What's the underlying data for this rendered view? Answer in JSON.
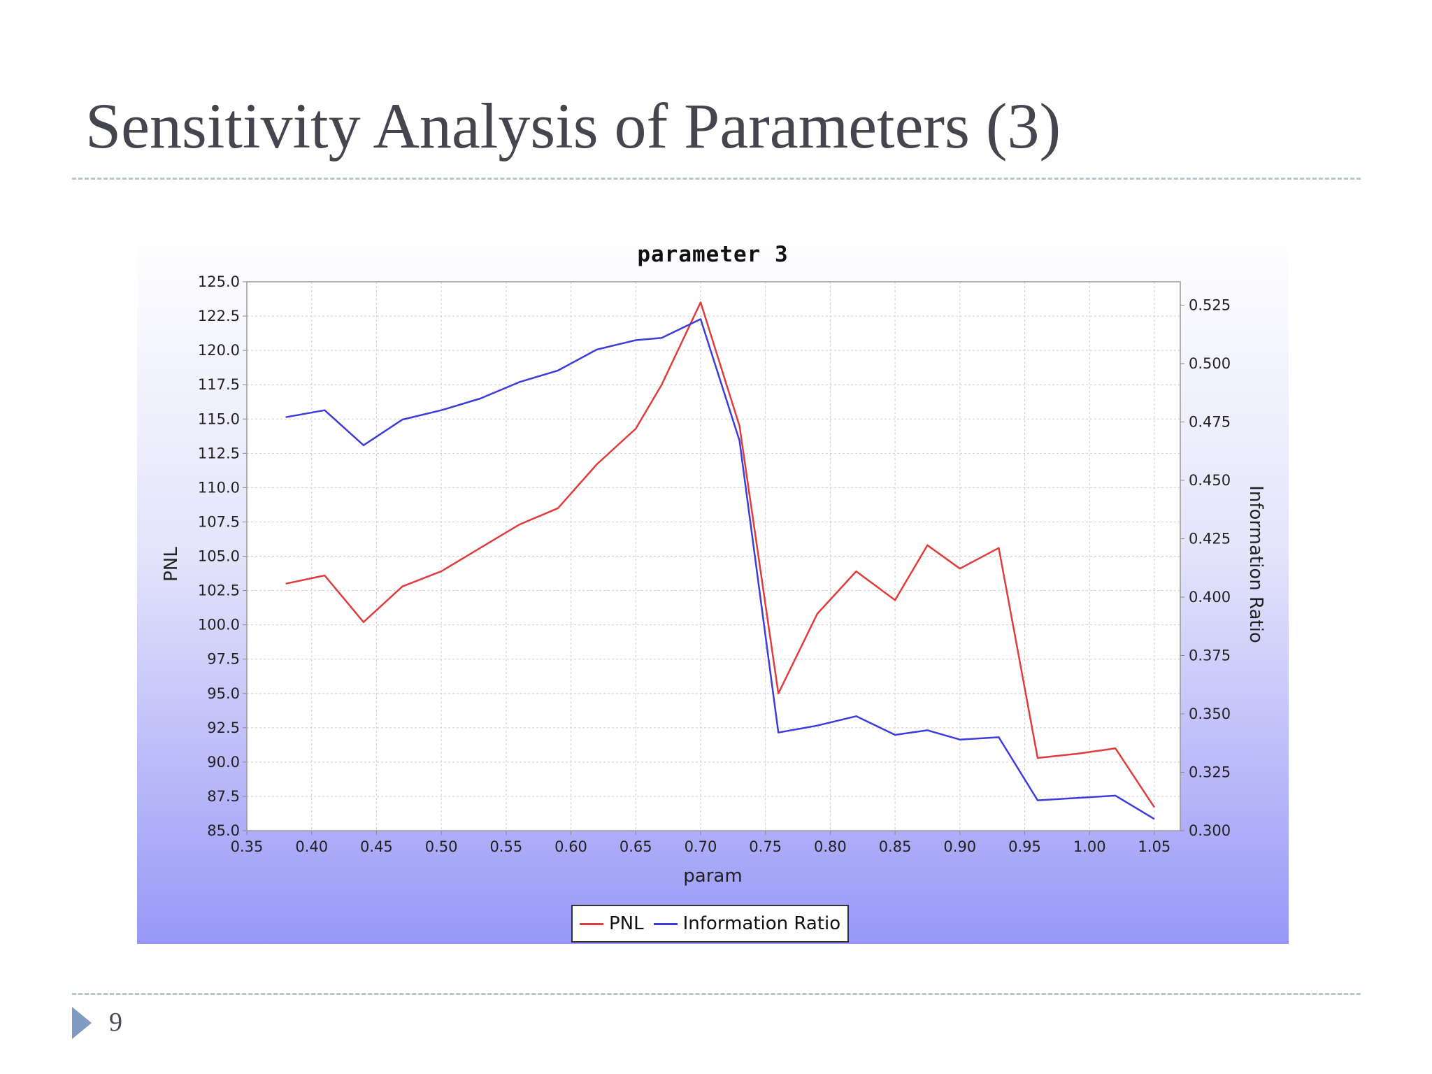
{
  "slide": {
    "title": "Sensitivity Analysis of Parameters (3)",
    "page_number": "9"
  },
  "colors": {
    "pnl": "#e03c3c",
    "information_ratio": "#3c3cdc",
    "grid": "#cfcfcf",
    "plot_background": "#ffffff"
  },
  "chart_data": {
    "type": "line",
    "title": "parameter 3",
    "xlabel": "param",
    "ylabel": "PNL",
    "ylabel_right": "Information Ratio",
    "xlim": [
      0.35,
      1.07
    ],
    "ylim": [
      85.0,
      125.0
    ],
    "ylim_right": [
      0.3,
      0.535
    ],
    "x_ticks": [
      "0.35",
      "0.40",
      "0.45",
      "0.50",
      "0.55",
      "0.60",
      "0.65",
      "0.70",
      "0.75",
      "0.80",
      "0.85",
      "0.90",
      "0.95",
      "1.00",
      "1.05"
    ],
    "y_ticks": [
      "85.0",
      "87.5",
      "90.0",
      "92.5",
      "95.0",
      "97.5",
      "100.0",
      "102.5",
      "105.0",
      "107.5",
      "110.0",
      "112.5",
      "115.0",
      "117.5",
      "120.0",
      "122.5",
      "125.0"
    ],
    "y_ticks_right": [
      "0.300",
      "0.325",
      "0.350",
      "0.375",
      "0.400",
      "0.425",
      "0.450",
      "0.475",
      "0.500",
      "0.525"
    ],
    "grid": true,
    "legend_position": "bottom-center",
    "x": [
      0.38,
      0.41,
      0.44,
      0.47,
      0.5,
      0.53,
      0.56,
      0.59,
      0.62,
      0.65,
      0.67,
      0.7,
      0.73,
      0.76,
      0.79,
      0.82,
      0.85,
      0.875,
      0.9,
      0.93,
      0.96,
      0.99,
      1.02,
      1.05
    ],
    "series": [
      {
        "name": "PNL",
        "axis": "left",
        "color": "#e03c3c",
        "values": [
          103.0,
          103.6,
          100.2,
          102.8,
          103.9,
          105.6,
          107.3,
          108.5,
          111.7,
          114.3,
          117.5,
          123.5,
          114.5,
          95.0,
          100.8,
          103.9,
          101.8,
          105.8,
          104.1,
          105.6,
          90.3,
          90.6,
          91.0,
          86.7
        ]
      },
      {
        "name": "Information Ratio",
        "axis": "right",
        "color": "#3c3cdc",
        "values": [
          0.477,
          0.48,
          0.465,
          0.476,
          0.48,
          0.485,
          0.492,
          0.497,
          0.506,
          0.51,
          0.511,
          0.519,
          0.467,
          0.342,
          0.345,
          0.349,
          0.341,
          0.343,
          0.339,
          0.34,
          0.313,
          0.314,
          0.315,
          0.305
        ]
      }
    ]
  }
}
